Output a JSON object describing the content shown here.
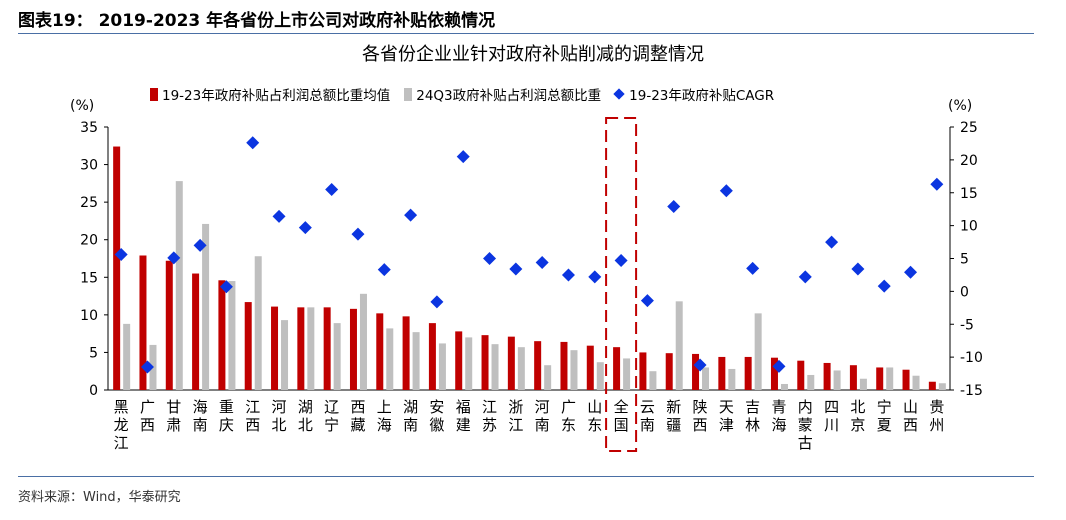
{
  "figure_title": "图表19：   2019-2023 年各省份上市公司对政府补贴依赖情况",
  "source": "资料来源：Wind，华泰研究",
  "colors": {
    "bar1": "#c00000",
    "bar2": "#bfbfbf",
    "diamond": "#0b35e0",
    "highlight": "#c00000"
  },
  "chart_data": {
    "type": "bar",
    "title": "各省份企业业针对政府补贴削减的调整情况",
    "left_axis": {
      "unit": "(%)",
      "min": 0,
      "max": 35,
      "ticks": [
        0,
        5,
        10,
        15,
        20,
        25,
        30,
        35
      ]
    },
    "right_axis": {
      "unit": "(%)",
      "min": -15,
      "max": 25,
      "ticks": [
        -15,
        -10,
        -5,
        0,
        5,
        10,
        15,
        20,
        25
      ]
    },
    "highlight_category": "全国",
    "categories": [
      "黑龙江",
      "广西",
      "甘肃",
      "海南",
      "重庆",
      "江西",
      "河北",
      "湖北",
      "辽宁",
      "西藏",
      "上海",
      "湖南",
      "安徽",
      "福建",
      "江苏",
      "浙江",
      "河南",
      "广东",
      "山东",
      "全国",
      "云南",
      "新疆",
      "陕西",
      "天津",
      "吉林",
      "青海",
      "内蒙古",
      "四川",
      "北京",
      "宁夏",
      "山西",
      "贵州"
    ],
    "series": [
      {
        "name": "19-23年政府补贴占利润总额比重均值",
        "axis": "left",
        "kind": "bar",
        "values": [
          32.4,
          17.9,
          17.2,
          15.5,
          14.6,
          11.7,
          11.1,
          11.0,
          11.0,
          10.8,
          10.2,
          9.8,
          8.9,
          7.8,
          7.3,
          7.1,
          6.5,
          6.4,
          5.9,
          5.7,
          5.0,
          4.9,
          4.8,
          4.4,
          4.4,
          4.3,
          3.9,
          3.6,
          3.3,
          3.0,
          2.7,
          1.1
        ]
      },
      {
        "name": "24Q3政府补贴占利润总额比重",
        "axis": "left",
        "kind": "bar",
        "values": [
          8.8,
          6.0,
          27.8,
          22.1,
          14.5,
          17.8,
          9.3,
          11.0,
          8.9,
          12.8,
          8.2,
          7.7,
          6.2,
          7.0,
          6.1,
          5.7,
          3.3,
          5.3,
          3.7,
          4.2,
          2.5,
          11.8,
          3.0,
          2.8,
          10.2,
          0.8,
          2.0,
          2.6,
          1.5,
          3.0,
          1.9,
          0.9
        ]
      },
      {
        "name": "19-23年政府补贴CAGR",
        "axis": "right",
        "kind": "scatter",
        "values": [
          5.6,
          -11.5,
          5.1,
          7.0,
          0.7,
          22.6,
          11.4,
          9.7,
          15.5,
          8.7,
          3.3,
          11.6,
          -1.6,
          20.5,
          5.0,
          3.4,
          4.4,
          2.5,
          2.2,
          4.7,
          -1.4,
          12.9,
          -11.2,
          15.3,
          3.5,
          -11.4,
          2.2,
          7.5,
          3.4,
          0.8,
          2.9,
          16.3
        ]
      }
    ]
  }
}
